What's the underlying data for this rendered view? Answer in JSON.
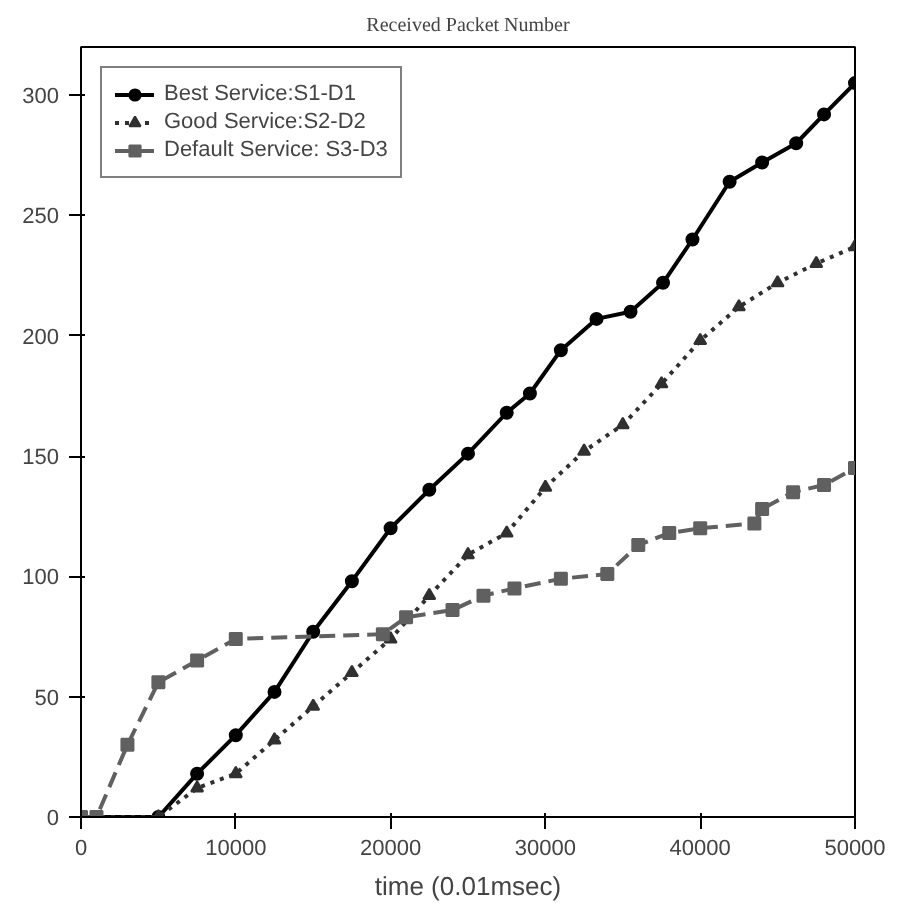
{
  "chart_data": {
    "type": "line",
    "title": "Received Packet Number",
    "xlabel": "time (0.01msec)",
    "xlim": [
      0,
      50000
    ],
    "xticks": [
      0,
      10000,
      20000,
      30000,
      40000,
      50000
    ],
    "ylim": [
      0,
      320
    ],
    "yticks": [
      0,
      50,
      100,
      150,
      200,
      250,
      300
    ],
    "grid": false,
    "legend": "top left",
    "series": [
      {
        "name": "Best Service:S1-D1",
        "color": "#000000",
        "marker": "circle",
        "line_style": "solid",
        "x": [
          0,
          5000,
          7500,
          10000,
          12500,
          15000,
          17500,
          20000,
          22500,
          25000,
          27500,
          29000,
          31000,
          33300,
          35500,
          37600,
          39500,
          41900,
          44000,
          46200,
          48000,
          50000
        ],
        "values": [
          0,
          0,
          18,
          34,
          52,
          77,
          98,
          120,
          136,
          151,
          168,
          176,
          194,
          207,
          210,
          222,
          240,
          264,
          272,
          280,
          292,
          305
        ]
      },
      {
        "name": "Good Service:S2-D2",
        "color": "#303030",
        "marker": "triangle",
        "line_style": "dotted",
        "x": [
          0,
          5000,
          7500,
          10000,
          12500,
          15000,
          17500,
          20000,
          22500,
          25000,
          27500,
          30000,
          32500,
          35000,
          37500,
          40000,
          42500,
          45000,
          47500,
          50000
        ],
        "values": [
          0,
          0,
          12,
          18,
          32,
          46,
          60,
          74,
          92,
          109,
          118,
          137,
          152,
          163,
          180,
          198,
          212,
          222,
          230,
          237
        ]
      },
      {
        "name": "Default Service: S3-D3",
        "color": "#606060",
        "marker": "square",
        "line_style": "dashed",
        "x": [
          0,
          1000,
          3000,
          5000,
          7500,
          10000,
          19500,
          21000,
          24000,
          26000,
          28000,
          31000,
          34000,
          36000,
          38000,
          40000,
          43500,
          44000,
          46000,
          48000,
          50000
        ],
        "values": [
          0,
          0,
          30,
          56,
          65,
          74,
          76,
          83,
          86,
          92,
          95,
          99,
          101,
          113,
          118,
          120,
          122,
          128,
          135,
          138,
          145
        ]
      }
    ]
  }
}
